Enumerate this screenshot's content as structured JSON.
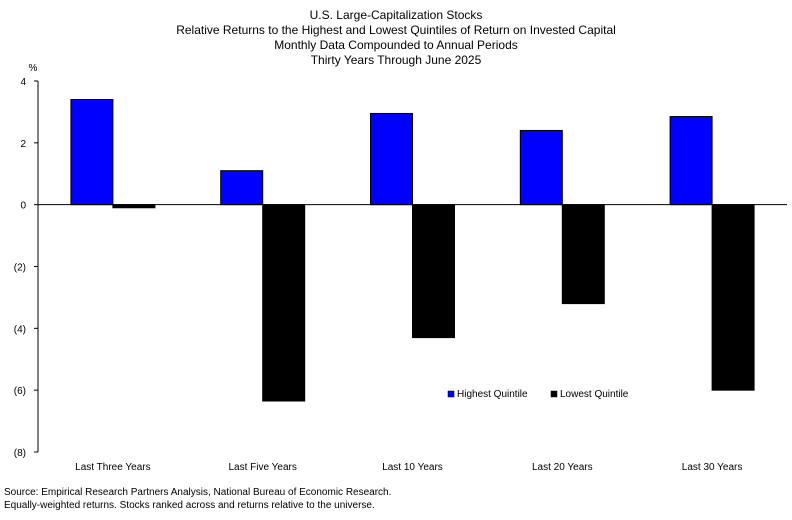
{
  "header": {
    "title": "U.S. Large-Capitalization Stocks",
    "subtitle_1": "Relative Returns to the Highest and Lowest Quintiles of Return on Invested Capital",
    "subtitle_2": "Monthly Data Compounded to Annual Periods",
    "subtitle_3": "Thirty Years Through June 2025"
  },
  "chart_data": {
    "type": "bar",
    "unit_label": "%",
    "categories": [
      "Last Three Years",
      "Last Five Years",
      "Last 10 Years",
      "Last 20 Years",
      "Last 30 Years"
    ],
    "series": [
      {
        "name": "Highest Quintile",
        "color": "#0000ff",
        "values": [
          3.4,
          1.1,
          2.95,
          2.4,
          2.85
        ]
      },
      {
        "name": "Lowest Quintile",
        "color": "#000000",
        "values": [
          -0.1,
          -6.35,
          -4.3,
          -3.2,
          -6.0
        ]
      }
    ],
    "ylim": [
      -8,
      4
    ],
    "yticks": [
      4,
      2,
      0,
      -2,
      -4,
      -6,
      -8
    ],
    "ytick_labels": [
      "4",
      "2",
      "0",
      "(2)",
      "(4)",
      "(6)",
      "(8)"
    ],
    "grid": false,
    "legend_position": "lower-right"
  },
  "footer": {
    "source_line_1": "Source: Empirical Research Partners Analysis, National Bureau of Economic Research.",
    "source_line_2": "Equally-weighted returns.   Stocks ranked across and returns  relative to the universe."
  }
}
